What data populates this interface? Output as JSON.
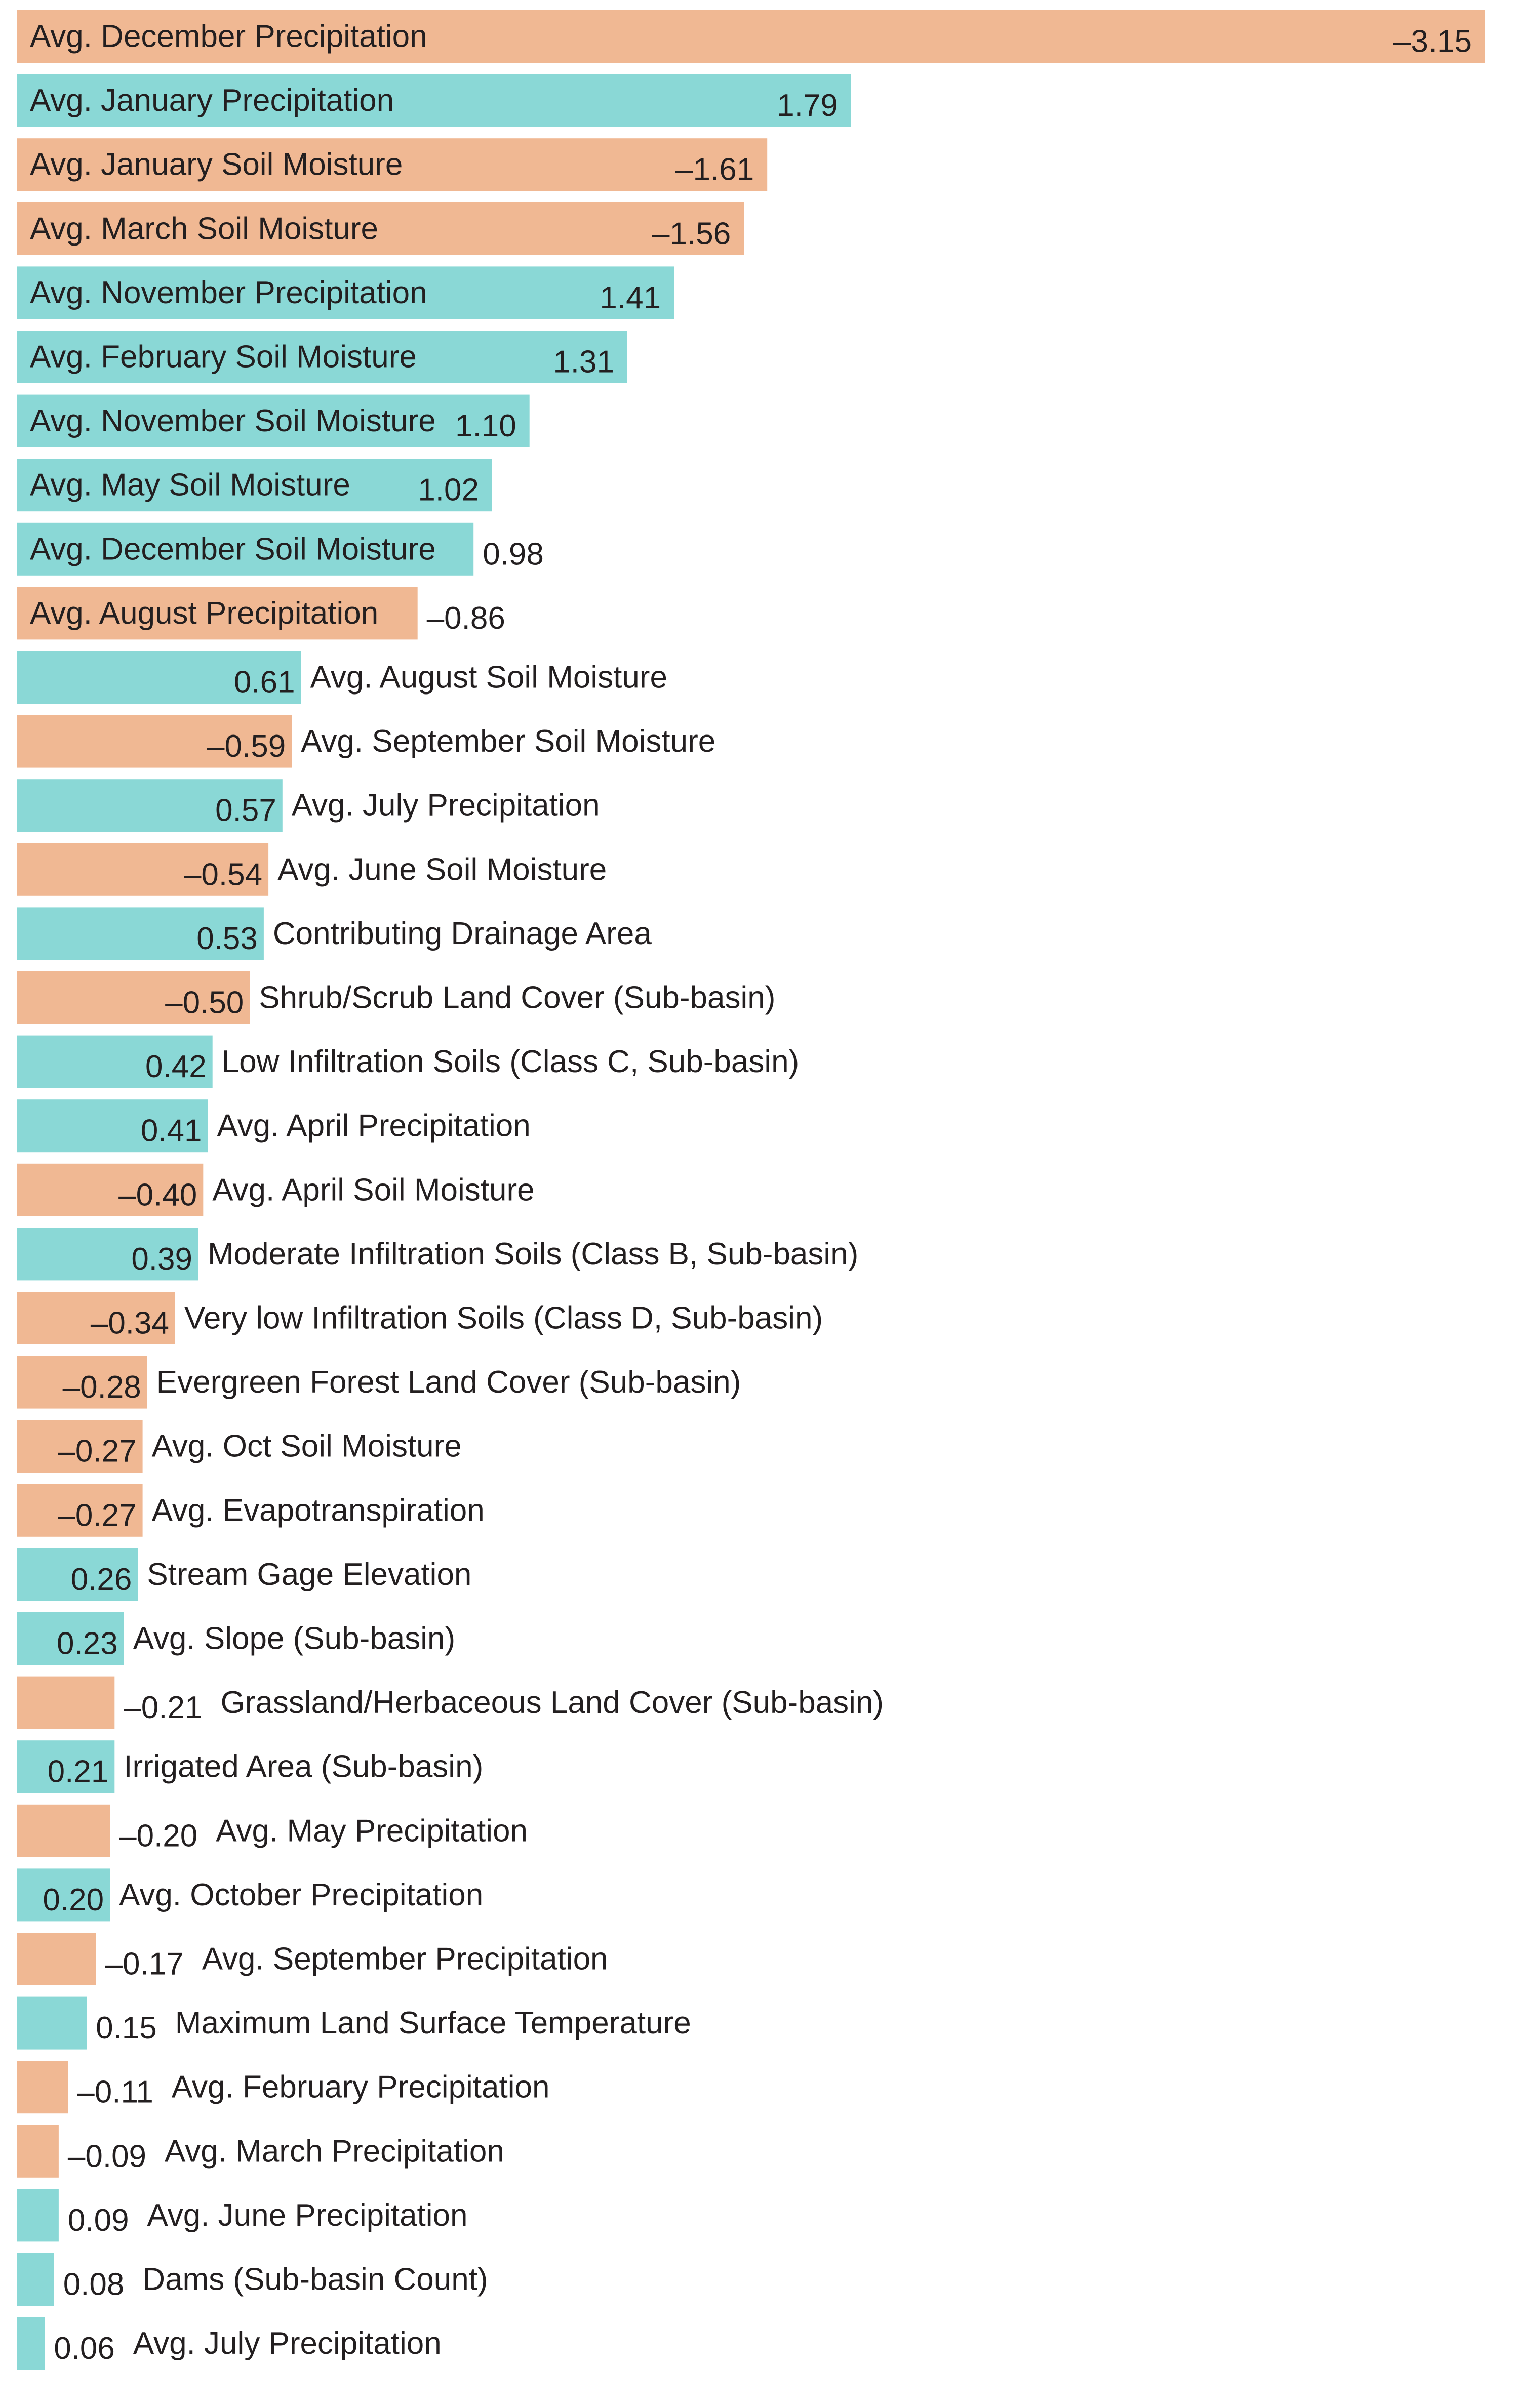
{
  "chart_data": {
    "type": "bar",
    "orientation": "horizontal",
    "value_display": "absolute",
    "colors": {
      "positive": "#8ad8d6",
      "negative": "#f0b893"
    },
    "bars": [
      {
        "label": "Avg. December Precipitation",
        "value": -3.15,
        "value_text": "–3.15"
      },
      {
        "label": "Avg. January Precipitation",
        "value": 1.79,
        "value_text": "1.79"
      },
      {
        "label": "Avg. January Soil Moisture",
        "value": -1.61,
        "value_text": "–1.61"
      },
      {
        "label": "Avg. March Soil Moisture",
        "value": -1.56,
        "value_text": "–1.56"
      },
      {
        "label": "Avg. November Precipitation",
        "value": 1.41,
        "value_text": "1.41"
      },
      {
        "label": "Avg. February Soil Moisture",
        "value": 1.31,
        "value_text": "1.31"
      },
      {
        "label": "Avg. November Soil Moisture",
        "value": 1.1,
        "value_text": "1.10"
      },
      {
        "label": "Avg. May Soil Moisture",
        "value": 1.02,
        "value_text": "1.02"
      },
      {
        "label": "Avg. December Soil Moisture",
        "value": 0.98,
        "value_text": "0.98"
      },
      {
        "label": "Avg. August Precipitation",
        "value": -0.86,
        "value_text": "–0.86"
      },
      {
        "label": "Avg. August Soil Moisture",
        "value": 0.61,
        "value_text": "0.61"
      },
      {
        "label": "Avg. September Soil Moisture",
        "value": -0.59,
        "value_text": "–0.59"
      },
      {
        "label": "Avg. July Precipitation",
        "value": 0.57,
        "value_text": "0.57"
      },
      {
        "label": "Avg. June Soil Moisture",
        "value": -0.54,
        "value_text": "–0.54"
      },
      {
        "label": "Contributing Drainage Area",
        "value": 0.53,
        "value_text": "0.53"
      },
      {
        "label": "Shrub/Scrub Land Cover (Sub-basin)",
        "value": -0.5,
        "value_text": "–0.50"
      },
      {
        "label": "Low Infiltration Soils (Class C, Sub-basin)",
        "value": 0.42,
        "value_text": "0.42"
      },
      {
        "label": "Avg. April Precipitation",
        "value": 0.41,
        "value_text": "0.41"
      },
      {
        "label": "Avg. April Soil Moisture",
        "value": -0.4,
        "value_text": "–0.40"
      },
      {
        "label": "Moderate Infiltration Soils (Class B, Sub-basin)",
        "value": 0.39,
        "value_text": "0.39"
      },
      {
        "label": "Very low Infiltration Soils (Class D, Sub-basin)",
        "value": -0.34,
        "value_text": "–0.34"
      },
      {
        "label": "Evergreen Forest Land Cover (Sub-basin)",
        "value": -0.28,
        "value_text": "–0.28"
      },
      {
        "label": "Avg. Oct Soil Moisture",
        "value": -0.27,
        "value_text": "–0.27"
      },
      {
        "label": "Avg. Evapotranspiration",
        "value": -0.27,
        "value_text": "–0.27"
      },
      {
        "label": "Stream Gage Elevation",
        "value": 0.26,
        "value_text": "0.26"
      },
      {
        "label": "Avg. Slope (Sub-basin)",
        "value": 0.23,
        "value_text": "0.23"
      },
      {
        "label": "Grassland/Herbaceous Land Cover (Sub-basin)",
        "value": -0.21,
        "value_text": "–0.21"
      },
      {
        "label": "Irrigated Area (Sub-basin)",
        "value": 0.21,
        "value_text": "0.21"
      },
      {
        "label": "Avg. May Precipitation",
        "value": -0.2,
        "value_text": "–0.20"
      },
      {
        "label": "Avg. October Precipitation",
        "value": 0.2,
        "value_text": "0.20"
      },
      {
        "label": "Avg. September Precipitation",
        "value": -0.17,
        "value_text": "–0.17"
      },
      {
        "label": "Maximum Land Surface Temperature",
        "value": 0.15,
        "value_text": "0.15"
      },
      {
        "label": "Avg. February Precipitation",
        "value": -0.11,
        "value_text": "–0.11"
      },
      {
        "label": "Avg. March Precipitation",
        "value": -0.09,
        "value_text": "–0.09"
      },
      {
        "label": "Avg. June Precipitation",
        "value": 0.09,
        "value_text": "0.09"
      },
      {
        "label": "Dams (Sub-basin Count)",
        "value": 0.08,
        "value_text": "0.08"
      },
      {
        "label": "Avg. July Precipitation",
        "value": 0.06,
        "value_text": "0.06"
      }
    ]
  }
}
